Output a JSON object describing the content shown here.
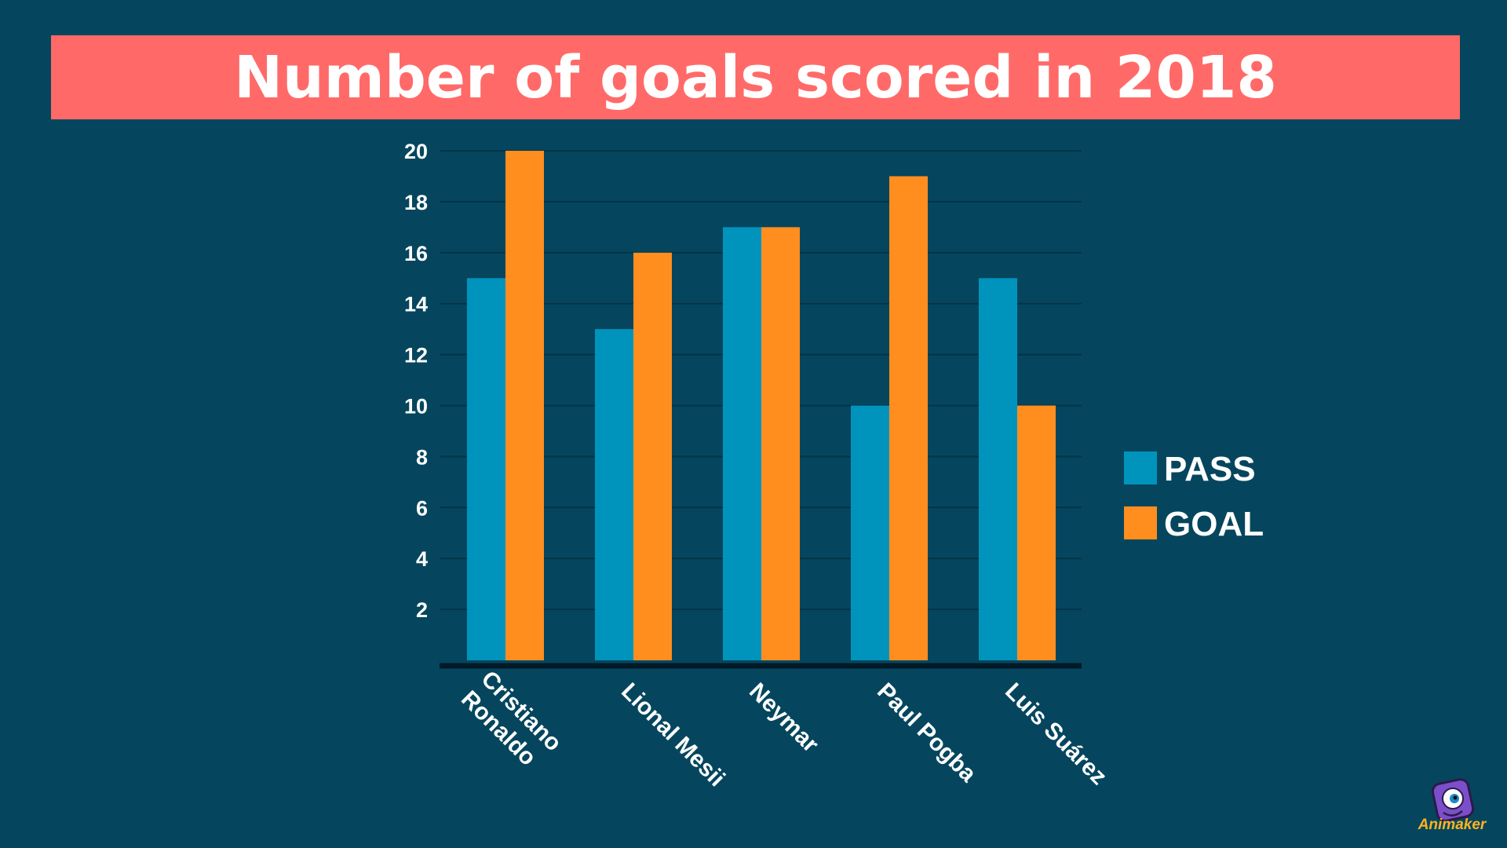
{
  "chart_data": {
    "type": "bar",
    "title": "Number of goals scored in 2018",
    "categories": [
      "Cristiano Ronaldo",
      "Lional Mesii",
      "Neymar",
      "Paul Pogba",
      "Luis Suárez"
    ],
    "series": [
      {
        "name": "PASS",
        "values": [
          15,
          13,
          17,
          10,
          15
        ],
        "color": "#0094bd"
      },
      {
        "name": "GOAL",
        "values": [
          20,
          16,
          17,
          19,
          10
        ],
        "color": "#ff8e1f"
      }
    ],
    "y_ticks": [
      "2",
      "4",
      "6",
      "8",
      "10",
      "12",
      "14",
      "16",
      "18",
      "20"
    ],
    "ylim": [
      0,
      20
    ],
    "grid": true,
    "legend_position": "right"
  },
  "colors": {
    "background": "#05465e",
    "banner": "#ff6a68",
    "gridline": "#033447",
    "axis": "#021a28"
  },
  "logo": {
    "text": "Animaker",
    "icon": "animaker-mascot-icon"
  }
}
